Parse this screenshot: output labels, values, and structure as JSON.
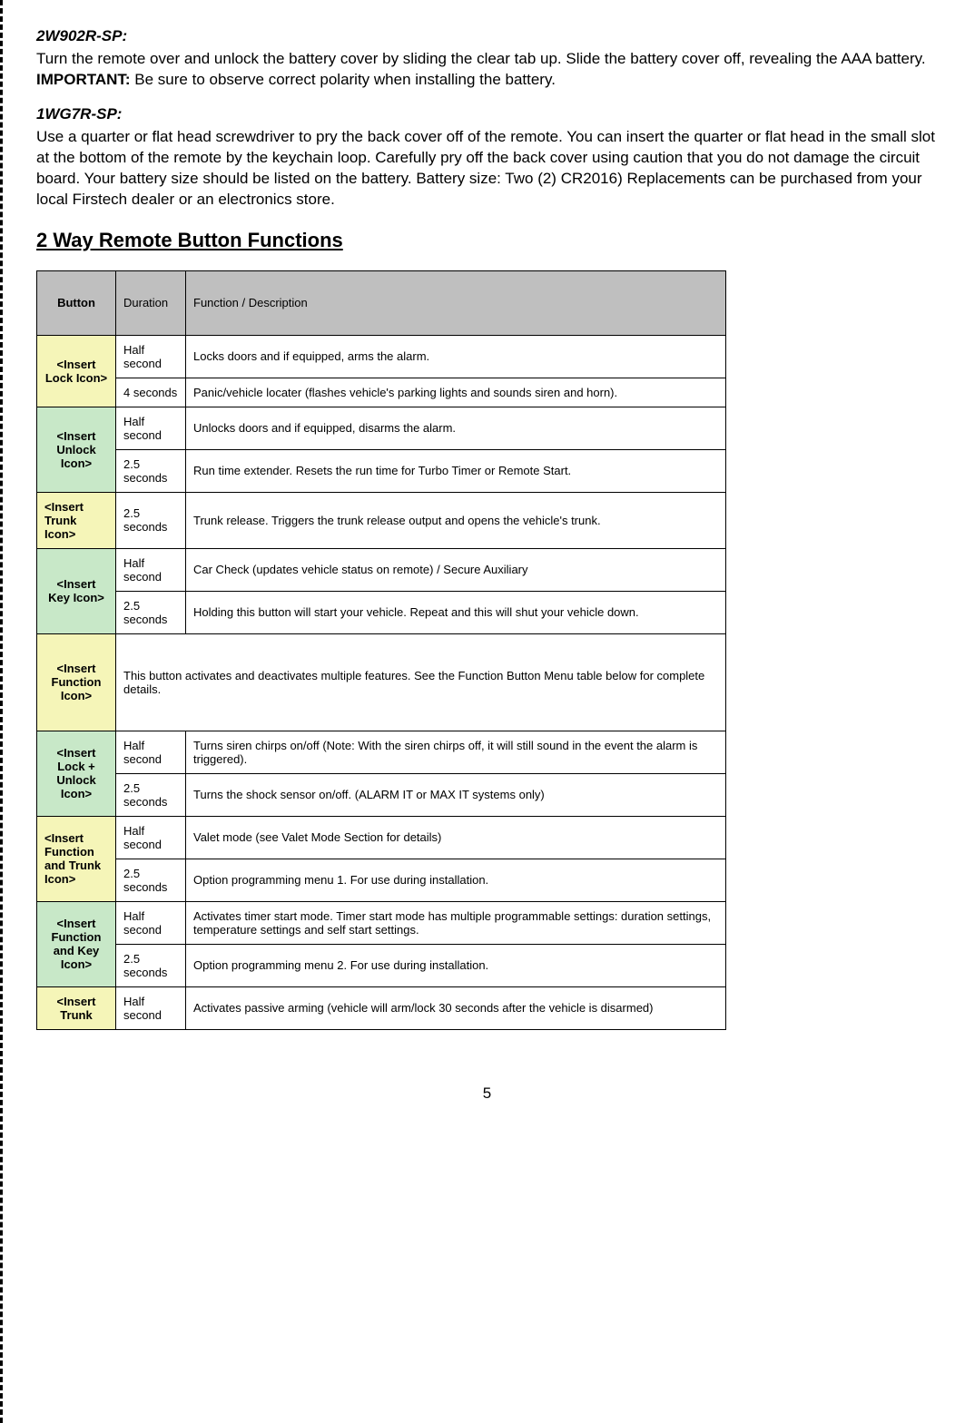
{
  "sections": {
    "s1": {
      "title": "2W902R-SP:",
      "para_pre": "Turn the remote over and unlock the battery cover by sliding the clear tab up. Slide the battery cover off, revealing the AAA battery. ",
      "important_label": "IMPORTANT:",
      "para_post": "  Be sure to observe correct polarity when installing the battery."
    },
    "s2": {
      "title": "1WG7R-SP:",
      "para": "Use a quarter or flat head screwdriver to pry the back cover off of the remote. You can insert the quarter or flat head in the small slot at the bottom of the remote by the keychain loop. Carefully pry off the back cover using caution that you do not damage the circuit board. Your battery size should be listed on the battery. Battery size: Two (2) CR2016) Replacements can be purchased from your local Firstech dealer or an electronics store."
    },
    "table_title": "2 Way Remote Button Functions"
  },
  "table": {
    "headers": {
      "button": "Button",
      "duration": "Duration",
      "func": "Function / Description"
    },
    "rows": [
      {
        "button": "<Insert Lock Icon>",
        "rowspan": 2,
        "bg": "bg-yellow",
        "cells": [
          {
            "dur": "Half second",
            "desc": "Locks doors and if equipped, arms the alarm."
          },
          {
            "dur": "4 seconds",
            "desc": "Panic/vehicle locater (flashes vehicle's parking lights and sounds siren and horn)."
          }
        ]
      },
      {
        "button": "<Insert Unlock Icon>",
        "rowspan": 2,
        "bg": "bg-green",
        "cells": [
          {
            "dur": "Half second",
            "desc": "Unlocks doors and if equipped, disarms the alarm."
          },
          {
            "dur": "2.5 seconds",
            "desc": "Run time extender. Resets the run time for Turbo Timer or Remote Start."
          }
        ]
      },
      {
        "button": "<Insert Trunk Icon>",
        "rowspan": 1,
        "bg": "bg-yellow",
        "align": "left-align",
        "cells": [
          {
            "dur": "2.5 seconds",
            "desc": "Trunk release. Triggers the trunk release output and opens the vehicle's trunk."
          }
        ]
      },
      {
        "button": "<Insert Key Icon>",
        "rowspan": 2,
        "bg": "bg-green",
        "cells": [
          {
            "dur": "Half second",
            "desc": "Car Check (updates vehicle status on remote) / Secure Auxiliary"
          },
          {
            "dur": "2.5 seconds",
            "desc": "Holding this button will start your vehicle. Repeat and this will shut your vehicle down."
          }
        ]
      },
      {
        "button": "<Insert Function Icon>",
        "rowspan": 1,
        "bg": "bg-yellow",
        "colspan": 2,
        "tall": true,
        "cells": [
          {
            "desc": "This button activates and deactivates multiple features. See the Function Button Menu table below for complete details."
          }
        ]
      },
      {
        "button": "<Insert Lock + Unlock Icon>",
        "rowspan": 2,
        "bg": "bg-green",
        "cells": [
          {
            "dur": "Half second",
            "desc": "Turns siren chirps on/off (Note: With the siren chirps off, it will still sound in the event the alarm is triggered)."
          },
          {
            "dur": "2.5 seconds",
            "desc": "Turns the shock sensor on/off. (ALARM IT or MAX IT systems only)"
          }
        ]
      },
      {
        "button": "<Insert Function and Trunk Icon>",
        "rowspan": 2,
        "bg": "bg-yellow",
        "align": "left-align",
        "cells": [
          {
            "dur": "Half second",
            "desc": "Valet mode (see Valet Mode Section for details)"
          },
          {
            "dur": "2.5 seconds",
            "desc": "Option programming menu 1. For use during installation."
          }
        ]
      },
      {
        "button": "<Insert Function and Key Icon>",
        "rowspan": 2,
        "bg": "bg-green",
        "cells": [
          {
            "dur": "Half second",
            "desc": "Activates timer start mode. Timer start mode has multiple programmable settings:  duration settings, temperature settings and self start settings."
          },
          {
            "dur": "2.5 seconds",
            "desc": "Option programming menu 2. For use during installation."
          }
        ]
      },
      {
        "button": "<Insert Trunk",
        "rowspan": 1,
        "bg": "bg-yellow",
        "cells": [
          {
            "dur": "Half second",
            "desc": "Activates passive arming (vehicle will arm/lock 30 seconds after the vehicle is disarmed)"
          }
        ]
      }
    ]
  },
  "page_number": "5"
}
